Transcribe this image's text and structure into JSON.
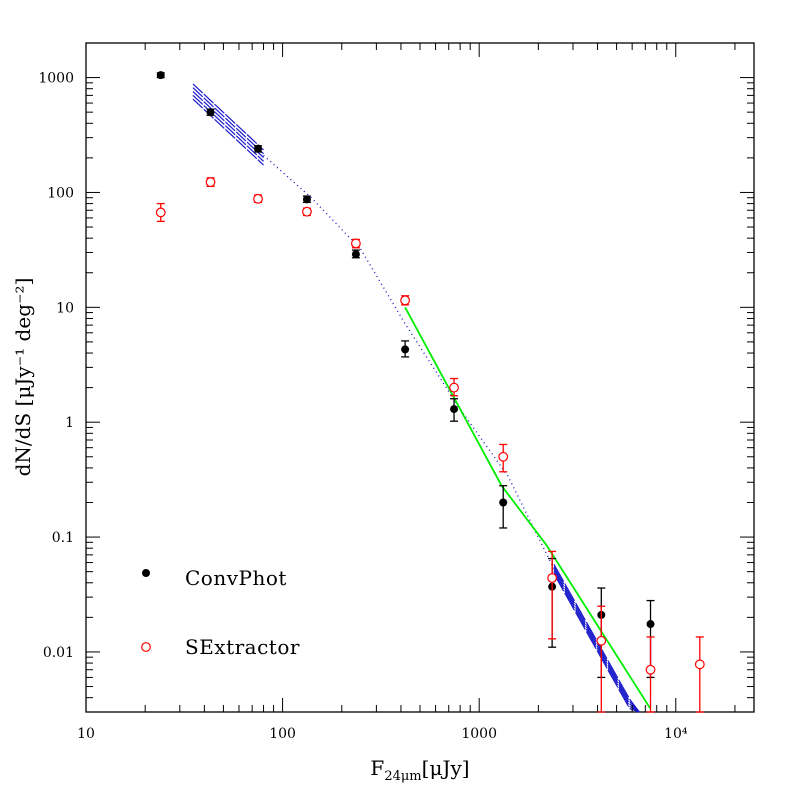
{
  "chart_data": {
    "type": "scatter",
    "xscale": "log",
    "yscale": "log",
    "xlim": [
      10,
      25000
    ],
    "ylim": [
      0.003,
      2000
    ],
    "xlabel": "F",
    "xlabel_sub": "24μm",
    "xlabel_unit": "[μJy]",
    "ylabel": "dN/dS [μJy⁻¹ deg⁻²]",
    "xticks": [
      {
        "value": 10,
        "label": "10"
      },
      {
        "value": 100,
        "label": "100"
      },
      {
        "value": 1000,
        "label": "1000"
      },
      {
        "value": 10000,
        "label": "10⁴"
      }
    ],
    "yticks": [
      {
        "value": 0.01,
        "label": "0.01"
      },
      {
        "value": 0.1,
        "label": "0.1"
      },
      {
        "value": 1,
        "label": "1"
      },
      {
        "value": 10,
        "label": "10"
      },
      {
        "value": 100,
        "label": "100"
      },
      {
        "value": 1000,
        "label": "1000"
      }
    ],
    "legend_position": "bottom-left",
    "series": [
      {
        "name": "ConvPhot",
        "color": "#000000",
        "marker": "filled-circle",
        "points": [
          {
            "x": 24,
            "y": 1050,
            "lo": 1000,
            "hi": 1100
          },
          {
            "x": 43,
            "y": 500,
            "lo": 470,
            "hi": 530
          },
          {
            "x": 75,
            "y": 240,
            "lo": 225,
            "hi": 255
          },
          {
            "x": 133,
            "y": 87,
            "lo": 82,
            "hi": 93
          },
          {
            "x": 236,
            "y": 29,
            "lo": 27,
            "hi": 31.5
          },
          {
            "x": 420,
            "y": 4.3,
            "lo": 3.7,
            "hi": 5.1
          },
          {
            "x": 745,
            "y": 1.3,
            "lo": 1.02,
            "hi": 1.6
          },
          {
            "x": 1325,
            "y": 0.2,
            "lo": 0.12,
            "hi": 0.28
          },
          {
            "x": 2350,
            "y": 0.037,
            "lo": 0.011,
            "hi": 0.065
          },
          {
            "x": 4180,
            "y": 0.021,
            "lo": 0.006,
            "hi": 0.036
          },
          {
            "x": 7440,
            "y": 0.0175,
            "lo": 0.006,
            "hi": 0.028
          }
        ]
      },
      {
        "name": "SExtractor",
        "color": "#ff0000",
        "marker": "open-circle",
        "points": [
          {
            "x": 24,
            "y": 67,
            "lo": 56,
            "hi": 80
          },
          {
            "x": 43,
            "y": 123,
            "lo": 113,
            "hi": 134
          },
          {
            "x": 75,
            "y": 88,
            "lo": 82,
            "hi": 95
          },
          {
            "x": 133,
            "y": 68,
            "lo": 63,
            "hi": 73
          },
          {
            "x": 236,
            "y": 36,
            "lo": 33,
            "hi": 39
          },
          {
            "x": 420,
            "y": 11.5,
            "lo": 10.5,
            "hi": 12.6
          },
          {
            "x": 745,
            "y": 2.0,
            "lo": 1.7,
            "hi": 2.4
          },
          {
            "x": 1325,
            "y": 0.5,
            "lo": 0.37,
            "hi": 0.64
          },
          {
            "x": 2350,
            "y": 0.044,
            "lo": 0.013,
            "hi": 0.075
          },
          {
            "x": 4180,
            "y": 0.0125,
            "lo": 0.003,
            "hi": 0.025
          },
          {
            "x": 7440,
            "y": 0.007,
            "lo": 0.003,
            "hi": 0.0135
          },
          {
            "x": 13250,
            "y": 0.0078,
            "lo": 0.003,
            "hi": 0.0135
          }
        ]
      }
    ],
    "model_line": {
      "color": "#00ee00",
      "points": [
        [
          420,
          10
        ],
        [
          1300,
          0.28
        ],
        [
          2200,
          0.085
        ],
        [
          7440,
          0.0032
        ]
      ]
    },
    "model_band": {
      "color": "#1a1acc",
      "hatched": [
        {
          "x_start": 35,
          "x_end": 80,
          "slope": -1.6,
          "upper_at_start": 880,
          "lower_at_start": 650
        },
        {
          "x_start": 2400,
          "x_end": 7000,
          "slope": -3.05,
          "upper_at_start": 0.058,
          "lower_at_start": 0.048
        }
      ],
      "dotted": [
        [
          80,
          210
        ],
        [
          140,
          90
        ],
        [
          250,
          32
        ],
        [
          420,
          7.2
        ],
        [
          800,
          1.3
        ],
        [
          1400,
          0.34
        ],
        [
          2400,
          0.053
        ]
      ]
    }
  }
}
